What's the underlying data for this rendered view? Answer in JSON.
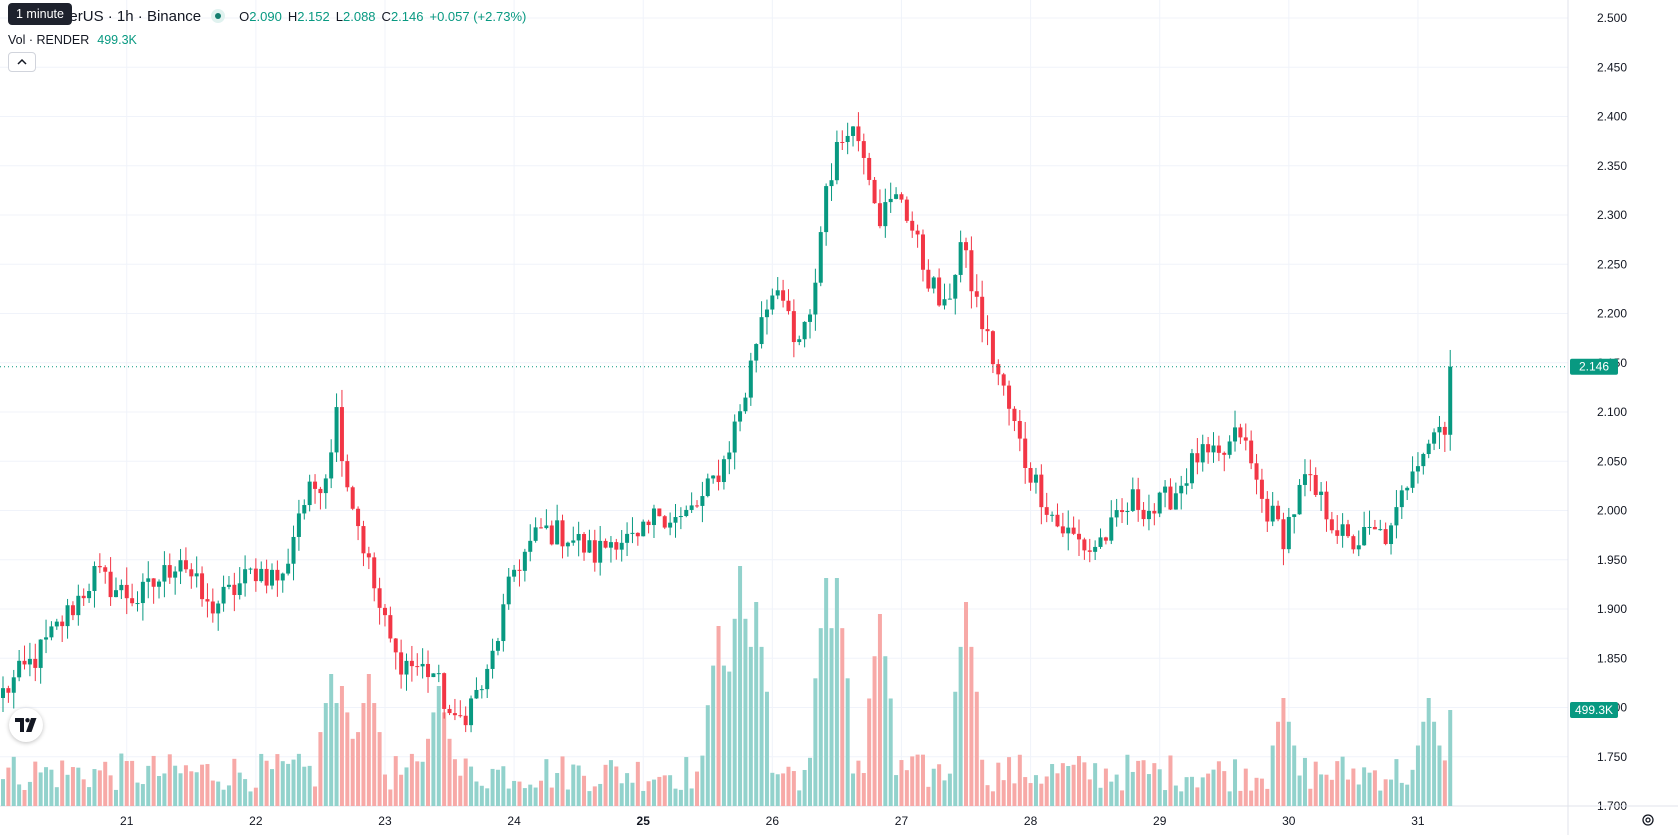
{
  "header": {
    "tooltip": "1 minute",
    "symbol": "ER / TetherUS · 1h · Binance",
    "ohlc": {
      "o_label": "O",
      "o_value": "2.090",
      "h_label": "H",
      "h_value": "2.152",
      "l_label": "L",
      "l_value": "2.088",
      "c_label": "C",
      "c_value": "2.146",
      "change": "+0.057 (+2.73%)"
    },
    "volume": {
      "label": "Vol · RENDER",
      "value": "499.3K"
    }
  },
  "colors": {
    "up": "#089981",
    "down": "#f23645",
    "up_volume": "#92d2cc",
    "down_volume": "#f7a9a7",
    "grid": "#f0f3fa",
    "axis_text": "#131722"
  },
  "icons": [
    "chevron-up-icon",
    "tradingview-logo-icon",
    "settings-icon"
  ],
  "chart_data": {
    "type": "candlestick",
    "price_axis": {
      "min": 1.7,
      "max": 2.5,
      "ticks": [
        "1.700",
        "1.750",
        "1.800",
        "1.850",
        "1.900",
        "1.950",
        "2.000",
        "2.050",
        "2.100",
        "2.150",
        "2.200",
        "2.250",
        "2.300",
        "2.350",
        "2.400",
        "2.450",
        "2.500"
      ]
    },
    "time_axis": {
      "ticks": [
        {
          "label": "21",
          "bold": false
        },
        {
          "label": "22",
          "bold": false
        },
        {
          "label": "23",
          "bold": false
        },
        {
          "label": "24",
          "bold": false
        },
        {
          "label": "25",
          "bold": true
        },
        {
          "label": "26",
          "bold": false
        },
        {
          "label": "27",
          "bold": false
        },
        {
          "label": "28",
          "bold": false
        },
        {
          "label": "29",
          "bold": false
        },
        {
          "label": "30",
          "bold": false
        },
        {
          "label": "31",
          "bold": false
        }
      ],
      "bars_per_day": 24,
      "first_tick_bar": 23,
      "total_bars": 270
    },
    "last_price": "2.146",
    "last_volume": "499.3K",
    "grid": true,
    "close_anchors": [
      [
        0,
        1.815
      ],
      [
        6,
        1.85
      ],
      [
        12,
        1.895
      ],
      [
        17,
        1.935
      ],
      [
        21,
        1.92
      ],
      [
        25,
        1.91
      ],
      [
        30,
        1.935
      ],
      [
        33,
        1.955
      ],
      [
        38,
        1.9
      ],
      [
        42,
        1.915
      ],
      [
        47,
        1.94
      ],
      [
        52,
        1.93
      ],
      [
        55,
        2.0
      ],
      [
        60,
        2.04
      ],
      [
        62,
        2.1
      ],
      [
        64,
        2.03
      ],
      [
        70,
        1.9
      ],
      [
        73,
        1.85
      ],
      [
        80,
        1.835
      ],
      [
        84,
        1.78
      ],
      [
        90,
        1.83
      ],
      [
        95,
        1.94
      ],
      [
        100,
        1.98
      ],
      [
        105,
        1.975
      ],
      [
        110,
        1.955
      ],
      [
        114,
        1.975
      ],
      [
        118,
        1.965
      ],
      [
        122,
        2.0
      ],
      [
        126,
        1.99
      ],
      [
        130,
        2.01
      ],
      [
        134,
        2.05
      ],
      [
        138,
        2.12
      ],
      [
        141,
        2.2
      ],
      [
        144,
        2.235
      ],
      [
        147,
        2.165
      ],
      [
        150,
        2.19
      ],
      [
        153,
        2.33
      ],
      [
        157,
        2.395
      ],
      [
        160,
        2.37
      ],
      [
        163,
        2.3
      ],
      [
        167,
        2.32
      ],
      [
        171,
        2.25
      ],
      [
        175,
        2.2
      ],
      [
        178,
        2.27
      ],
      [
        182,
        2.19
      ],
      [
        186,
        2.12
      ],
      [
        190,
        2.05
      ],
      [
        196,
        1.985
      ],
      [
        202,
        1.96
      ],
      [
        206,
        1.98
      ],
      [
        210,
        2.01
      ],
      [
        214,
        2.0
      ],
      [
        218,
        2.02
      ],
      [
        222,
        2.055
      ],
      [
        226,
        2.05
      ],
      [
        230,
        2.08
      ],
      [
        234,
        2.01
      ],
      [
        238,
        1.975
      ],
      [
        242,
        2.03
      ],
      [
        246,
        2.0
      ],
      [
        250,
        1.965
      ],
      [
        254,
        1.975
      ],
      [
        258,
        1.975
      ],
      [
        262,
        2.05
      ],
      [
        266,
        2.08
      ],
      [
        268,
        2.09
      ],
      [
        269,
        2.146
      ]
    ],
    "volume_bars": {
      "count": 270,
      "typical": "low",
      "spikes": [
        {
          "bar": 61,
          "volume": 0.55
        },
        {
          "bar": 63,
          "volume": 0.5
        },
        {
          "bar": 68,
          "volume": 0.55
        },
        {
          "bar": 81,
          "volume": 0.5
        },
        {
          "bar": 133,
          "volume": 0.75
        },
        {
          "bar": 137,
          "volume": 1.0
        },
        {
          "bar": 140,
          "volume": 0.85
        },
        {
          "bar": 153,
          "volume": 0.95
        },
        {
          "bar": 155,
          "volume": 0.95
        },
        {
          "bar": 163,
          "volume": 0.8
        },
        {
          "bar": 179,
          "volume": 0.85
        },
        {
          "bar": 238,
          "volume": 0.45
        },
        {
          "bar": 265,
          "volume": 0.45
        }
      ]
    }
  }
}
